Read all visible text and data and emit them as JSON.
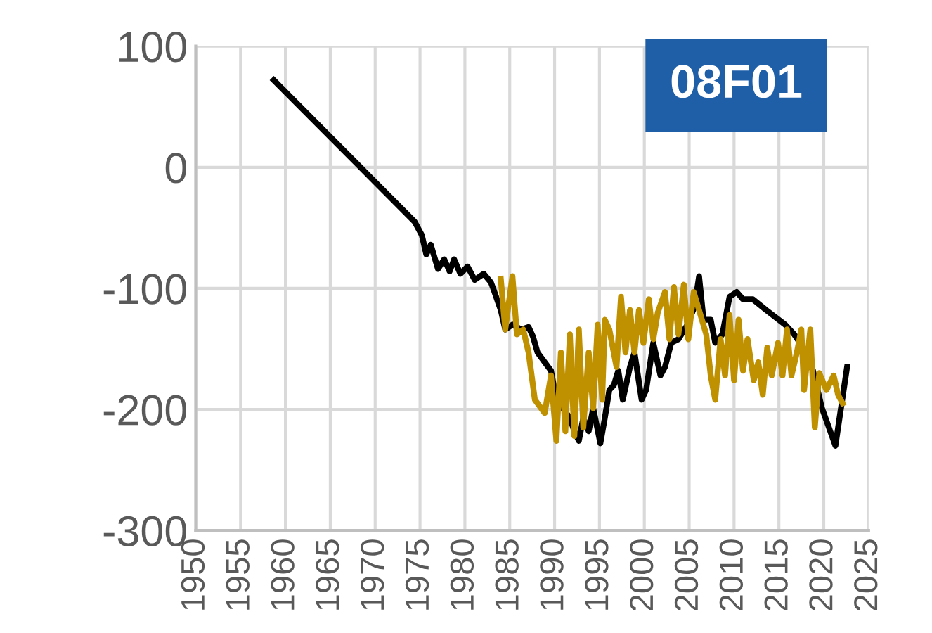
{
  "chart_data": {
    "type": "line",
    "annotations": [
      "08F01"
    ],
    "xlim": [
      1950,
      2025
    ],
    "xticks": [
      1950,
      1955,
      1960,
      1965,
      1970,
      1975,
      1980,
      1985,
      1990,
      1995,
      2000,
      2005,
      2010,
      2015,
      2020,
      2025
    ],
    "ylim": [
      -300,
      100
    ],
    "yticks": [
      100,
      0,
      -100,
      -200,
      -300
    ],
    "grid": true,
    "legend": false,
    "marker": "none",
    "line_style": "solid",
    "series": [
      {
        "color": "#000000",
        "x": [
          1958.7,
          1974.4,
          1975.2,
          1975.7,
          1976.2,
          1977.0,
          1977.7,
          1978.3,
          1978.8,
          1979.5,
          1980.3,
          1981.1,
          1982.1,
          1982.9,
          1983.2,
          1984.0,
          1984.5,
          1985.3,
          1986.3,
          1987.1,
          1987.6,
          1988.1,
          1988.9,
          1989.6,
          1990.2,
          1990.9,
          1991.7,
          1992.2,
          1992.7,
          1993.2,
          1993.8,
          1994.3,
          1995.1,
          1995.6,
          1996.1,
          1996.6,
          1997.1,
          1997.6,
          1998.4,
          1998.9,
          1999.7,
          2000.2,
          2001.0,
          2001.8,
          2002.3,
          2003.0,
          2003.8,
          2004.8,
          2005.6,
          2006.1,
          2006.6,
          2007.4,
          2007.9,
          2008.7,
          2009.5,
          2010.3,
          2011.0,
          2012.1,
          2013.6,
          2015.7,
          2016.7,
          2017.7,
          2018.8,
          2019.8,
          2021.3,
          2022.6
        ],
        "values": [
          72,
          -45,
          -56,
          -72,
          -64,
          -84,
          -76,
          -86,
          -76,
          -88,
          -82,
          -93,
          -88,
          -95,
          -101,
          -118,
          -134,
          -130,
          -134,
          -132,
          -140,
          -153,
          -161,
          -168,
          -192,
          -199,
          -207,
          -218,
          -226,
          -207,
          -218,
          -199,
          -228,
          -207,
          -184,
          -180,
          -168,
          -192,
          -165,
          -153,
          -192,
          -184,
          -145,
          -172,
          -165,
          -145,
          -142,
          -130,
          -115,
          -90,
          -126,
          -126,
          -145,
          -138,
          -107,
          -103,
          -109,
          -109,
          -118,
          -130,
          -138,
          -149,
          -168,
          -199,
          -230,
          -165
        ]
      },
      {
        "color": "#bf9000",
        "x": [
          1984.0,
          1984.5,
          1985.3,
          1985.8,
          1986.5,
          1987.1,
          1987.8,
          1988.9,
          1989.6,
          1990.2,
          1990.7,
          1991.2,
          1991.7,
          1992.2,
          1992.7,
          1993.2,
          1993.8,
          1994.3,
          1994.8,
          1995.3,
          1995.6,
          1996.1,
          1996.9,
          1997.4,
          1997.9,
          1998.4,
          1998.9,
          1999.4,
          1999.9,
          2000.5,
          2001.0,
          2001.5,
          2002.3,
          2002.8,
          2003.3,
          2003.8,
          2004.4,
          2004.9,
          2005.5,
          2006.1,
          2006.9,
          2007.4,
          2007.9,
          2008.5,
          2009.0,
          2009.5,
          2010.0,
          2010.5,
          2011.0,
          2011.5,
          2012.2,
          2012.7,
          2013.2,
          2013.7,
          2014.2,
          2014.9,
          2015.4,
          2015.9,
          2016.4,
          2017.0,
          2017.5,
          2017.8,
          2018.5,
          2019.0,
          2019.5,
          2020.3,
          2021.1,
          2021.6,
          2022.1
        ],
        "values": [
          -92,
          -134,
          -90,
          -138,
          -134,
          -153,
          -192,
          -203,
          -172,
          -226,
          -153,
          -218,
          -138,
          -222,
          -134,
          -215,
          -153,
          -199,
          -130,
          -192,
          -126,
          -134,
          -165,
          -107,
          -153,
          -118,
          -153,
          -118,
          -145,
          -109,
          -142,
          -120,
          -103,
          -142,
          -99,
          -138,
          -97,
          -142,
          -103,
          -118,
          -138,
          -172,
          -192,
          -142,
          -172,
          -122,
          -176,
          -126,
          -168,
          -142,
          -176,
          -161,
          -188,
          -149,
          -172,
          -145,
          -172,
          -134,
          -172,
          -153,
          -134,
          -184,
          -134,
          -215,
          -170,
          -184,
          -172,
          -188,
          -195
        ]
      }
    ]
  }
}
